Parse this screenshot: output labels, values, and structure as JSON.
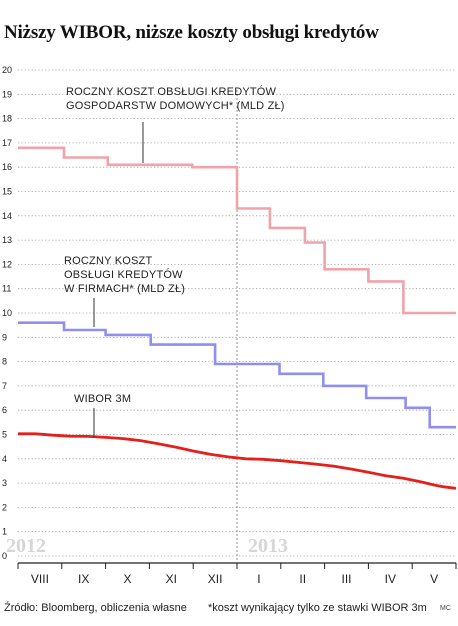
{
  "title": "Niższy WIBOR, niższe koszty obsługi kredytów",
  "footer": {
    "source": "Źródło: Bloomberg, obliczenia własne",
    "note": "*koszt wynikający tylko ze stawki WIBOR 3m",
    "credit": "MC"
  },
  "chart_data": {
    "type": "line",
    "y_ticks": [
      0,
      1,
      2,
      3,
      4,
      5,
      6,
      7,
      8,
      9,
      10,
      11,
      12,
      13,
      14,
      15,
      16,
      17,
      18,
      19,
      20
    ],
    "ylim": [
      0,
      20
    ],
    "grid": "horizontal dotted",
    "categories": [
      "VIII",
      "IX",
      "X",
      "XI",
      "XII",
      "I",
      "II",
      "III",
      "IV",
      "V"
    ],
    "year_labels": [
      "2012",
      "2013"
    ],
    "colors": {
      "households": "#f0a3a8",
      "firms": "#8f8ff0",
      "wibor": "#e3201b"
    },
    "series": [
      {
        "name": "households",
        "label_lines": [
          "ROCZNY KOSZT OBSŁUGI KREDYTÓW",
          "GOSPODARSTW DOMOWYCH* (MLD ZŁ)"
        ],
        "shape": "step",
        "x": [
          0.0,
          1.05,
          2.05,
          3.98,
          5.0,
          5.75,
          6.55,
          7.0,
          8.0,
          8.8
        ],
        "values": [
          16.8,
          16.4,
          16.1,
          16.0,
          14.3,
          13.5,
          12.9,
          11.8,
          11.3,
          10.0
        ]
      },
      {
        "name": "firms",
        "label_lines": [
          "ROCZNY KOSZT",
          "OBSŁUGI KREDYTÓW",
          "W FIRMACH* (MLD ZŁ)"
        ],
        "shape": "step",
        "x": [
          0.0,
          1.05,
          2.0,
          3.03,
          4.5,
          5.97,
          6.97,
          7.95,
          8.85,
          9.4
        ],
        "values": [
          9.6,
          9.3,
          9.1,
          8.7,
          7.9,
          7.5,
          7.0,
          6.5,
          6.1,
          5.3
        ]
      },
      {
        "name": "wibor",
        "label_lines": [
          "WIBOR 3M"
        ],
        "shape": "line",
        "x": [
          0.0,
          0.4,
          0.8,
          1.2,
          1.6,
          2.0,
          2.4,
          2.8,
          3.2,
          3.6,
          4.0,
          4.4,
          4.8,
          5.2,
          5.6,
          6.0,
          6.4,
          6.8,
          7.2,
          7.6,
          8.0,
          8.4,
          8.8,
          9.2,
          9.5,
          9.7,
          10.0
        ],
        "values": [
          5.03,
          5.03,
          4.97,
          4.93,
          4.92,
          4.88,
          4.83,
          4.75,
          4.62,
          4.48,
          4.32,
          4.18,
          4.08,
          4.0,
          3.98,
          3.92,
          3.85,
          3.78,
          3.7,
          3.58,
          3.45,
          3.3,
          3.2,
          3.05,
          2.92,
          2.85,
          2.78
        ]
      }
    ]
  }
}
